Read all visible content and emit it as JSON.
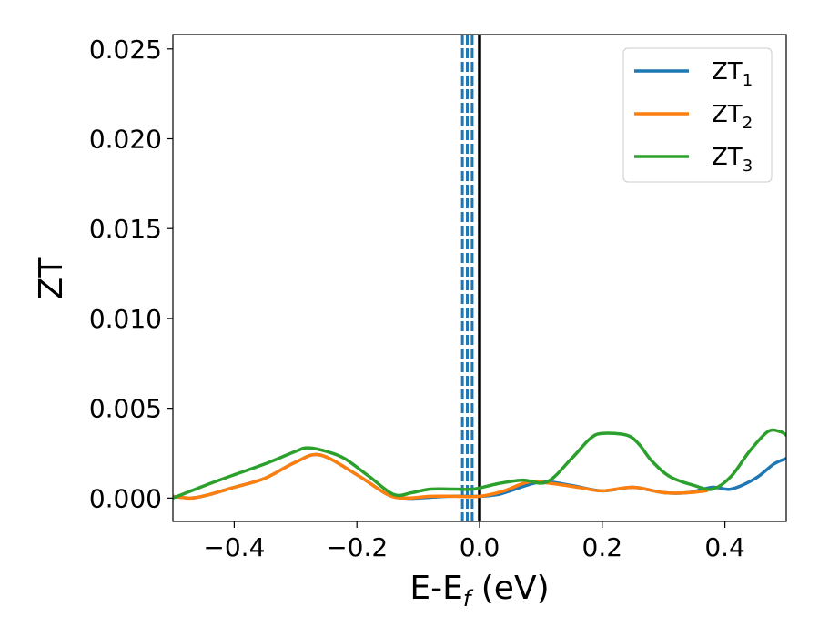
{
  "chart_data": {
    "type": "line",
    "xlabel_main": "E-E",
    "xlabel_sub": "f",
    "xlabel_unit": " (eV)",
    "ylabel": "ZT",
    "xlim": [
      -0.5,
      0.5
    ],
    "ylim": [
      -0.0013,
      0.0258
    ],
    "xticks": [
      -0.4,
      -0.2,
      0.0,
      0.2,
      0.4
    ],
    "xtick_labels": [
      "−0.4",
      "−0.2",
      "0.0",
      "0.2",
      "0.4"
    ],
    "yticks": [
      0.0,
      0.005,
      0.01,
      0.015,
      0.02,
      0.025
    ],
    "ytick_labels": [
      "0.000",
      "0.005",
      "0.010",
      "0.015",
      "0.020",
      "0.025"
    ],
    "grid": false,
    "legend_placement": "top-right",
    "vlines": [
      {
        "x": 0.0,
        "color": "#000000",
        "style": "solid"
      },
      {
        "x": -0.028,
        "color": "#1f77b4",
        "style": "dashed"
      },
      {
        "x": -0.02,
        "color": "#1f77b4",
        "style": "dashed"
      },
      {
        "x": -0.012,
        "color": "#1f77b4",
        "style": "dashed"
      }
    ],
    "series": [
      {
        "name": "ZT",
        "name_sub": "1",
        "color": "#1f77b4",
        "x": [
          -0.5,
          -0.47,
          -0.44,
          -0.4,
          -0.35,
          -0.3,
          -0.26,
          -0.2,
          -0.15,
          -0.12,
          -0.1,
          -0.05,
          0.0,
          0.03,
          0.05,
          0.1,
          0.15,
          0.2,
          0.25,
          0.3,
          0.34,
          0.38,
          0.41,
          0.45,
          0.48,
          0.5
        ],
        "y": [
          0.0001,
          0.0,
          0.0002,
          0.0006,
          0.0011,
          0.002,
          0.0024,
          0.0013,
          0.0002,
          0.0,
          0.0,
          0.0001,
          0.0001,
          0.0002,
          0.0004,
          0.0009,
          0.0007,
          0.0004,
          0.0006,
          0.0003,
          0.0003,
          0.0006,
          0.0005,
          0.0011,
          0.0019,
          0.0022
        ]
      },
      {
        "name": "ZT",
        "name_sub": "2",
        "color": "#ff7f0e",
        "x": [
          -0.5,
          -0.47,
          -0.44,
          -0.4,
          -0.35,
          -0.3,
          -0.26,
          -0.2,
          -0.15,
          -0.12,
          -0.08,
          -0.04,
          0.0,
          0.04,
          0.08,
          0.12,
          0.16,
          0.2,
          0.25,
          0.3,
          0.34,
          0.37
        ],
        "y": [
          0.0001,
          0.0,
          0.0002,
          0.0006,
          0.0011,
          0.002,
          0.0024,
          0.0013,
          0.0002,
          0.0,
          0.0001,
          0.0001,
          0.0001,
          0.0004,
          0.0009,
          0.0008,
          0.0006,
          0.0004,
          0.0006,
          0.0003,
          0.0003,
          0.0004
        ]
      },
      {
        "name": "ZT",
        "name_sub": "3",
        "color": "#2ca02c",
        "x": [
          -0.5,
          -0.47,
          -0.44,
          -0.4,
          -0.35,
          -0.3,
          -0.28,
          -0.25,
          -0.22,
          -0.18,
          -0.14,
          -0.11,
          -0.08,
          -0.04,
          -0.01,
          0.03,
          0.07,
          0.11,
          0.15,
          0.18,
          0.2,
          0.24,
          0.26,
          0.28,
          0.31,
          0.35,
          0.38,
          0.41,
          0.44,
          0.47,
          0.49,
          0.5
        ],
        "y": [
          0.0,
          0.0004,
          0.0008,
          0.0013,
          0.0019,
          0.0026,
          0.0028,
          0.0026,
          0.0022,
          0.0012,
          0.0002,
          0.0003,
          0.0005,
          0.0005,
          0.0005,
          0.0008,
          0.001,
          0.0009,
          0.0022,
          0.0033,
          0.0036,
          0.0035,
          0.003,
          0.0021,
          0.0012,
          0.0007,
          0.0005,
          0.0012,
          0.0026,
          0.0037,
          0.0037,
          0.0035
        ]
      }
    ]
  }
}
